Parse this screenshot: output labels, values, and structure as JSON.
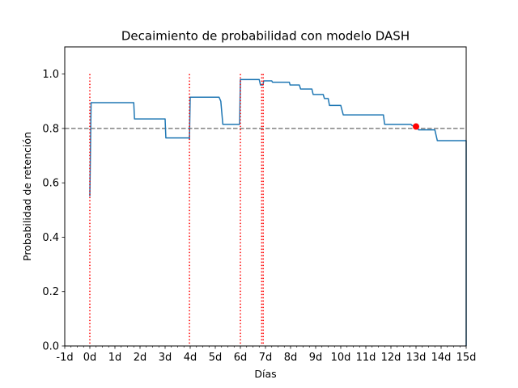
{
  "chart_data": {
    "type": "line",
    "title": "Decaimiento de probabilidad con modelo DASH",
    "xlabel": "Días",
    "ylabel": "Probabilidad de retención",
    "xlim": [
      -1,
      15
    ],
    "ylim": [
      0,
      1.1
    ],
    "x_ticks": [
      -1,
      0,
      1,
      2,
      3,
      4,
      5,
      6,
      7,
      8,
      9,
      10,
      11,
      12,
      13,
      14,
      15
    ],
    "x_tick_labels": [
      "-1d",
      "0d",
      "1d",
      "2d",
      "3d",
      "4d",
      "5d",
      "6d",
      "7d",
      "8d",
      "9d",
      "10d",
      "11d",
      "12d",
      "13d",
      "14d",
      "15d"
    ],
    "y_ticks": [
      0.0,
      0.2,
      0.4,
      0.6,
      0.8,
      1.0
    ],
    "y_tick_labels": [
      "0.0",
      "0.2",
      "0.4",
      "0.6",
      "0.8",
      "1.0"
    ],
    "grid": false,
    "legend": "none",
    "series": [
      {
        "color": "#1f77b4",
        "style": "solid",
        "points": [
          [
            0.0,
            0.55
          ],
          [
            0.05,
            0.895
          ],
          [
            1.75,
            0.895
          ],
          [
            1.78,
            0.835
          ],
          [
            3.0,
            0.835
          ],
          [
            3.03,
            0.765
          ],
          [
            3.97,
            0.765
          ],
          [
            3.97,
            0.76
          ],
          [
            4.0,
            0.915
          ],
          [
            5.15,
            0.915
          ],
          [
            5.22,
            0.9
          ],
          [
            5.3,
            0.815
          ],
          [
            5.97,
            0.815
          ],
          [
            6.0,
            0.98
          ],
          [
            6.75,
            0.98
          ],
          [
            6.8,
            0.96
          ],
          [
            6.9,
            0.96
          ],
          [
            6.93,
            0.975
          ],
          [
            7.25,
            0.975
          ],
          [
            7.28,
            0.97
          ],
          [
            7.95,
            0.97
          ],
          [
            7.98,
            0.96
          ],
          [
            8.35,
            0.96
          ],
          [
            8.4,
            0.945
          ],
          [
            8.85,
            0.945
          ],
          [
            8.9,
            0.925
          ],
          [
            9.3,
            0.925
          ],
          [
            9.35,
            0.91
          ],
          [
            9.5,
            0.91
          ],
          [
            9.55,
            0.885
          ],
          [
            10.0,
            0.885
          ],
          [
            10.1,
            0.85
          ],
          [
            11.7,
            0.85
          ],
          [
            11.75,
            0.815
          ],
          [
            12.8,
            0.815
          ],
          [
            12.85,
            0.81
          ],
          [
            13.0,
            0.81
          ],
          [
            13.1,
            0.795
          ],
          [
            13.75,
            0.795
          ],
          [
            13.85,
            0.755
          ],
          [
            15.0,
            0.755
          ],
          [
            15.0,
            0.0
          ]
        ]
      }
    ],
    "reference_line": {
      "y": 0.8,
      "color": "#808080",
      "style": "dashed"
    },
    "review_markers": {
      "x": [
        0,
        3.97,
        6.0,
        6.85,
        6.91
      ],
      "y_top": 1.0,
      "color": "#ff0000",
      "style": "dotted"
    },
    "highlight_point": {
      "x": 13.0,
      "y": 0.807,
      "color": "#ff0000"
    }
  }
}
